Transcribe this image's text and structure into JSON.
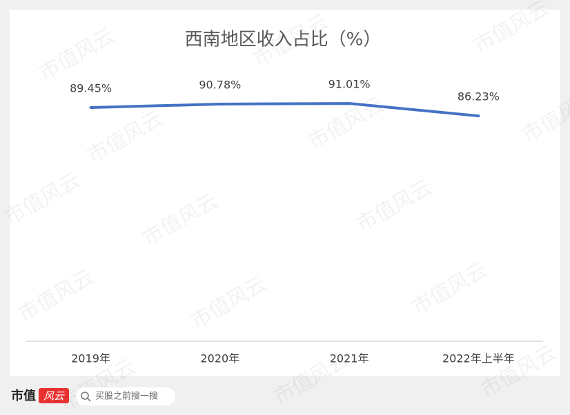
{
  "chart_data": {
    "type": "line",
    "title": "西南地区收入占比（%）",
    "categories": [
      "2019年",
      "2020年",
      "2021年",
      "2022年上半年"
    ],
    "values": [
      89.45,
      90.78,
      91.01,
      86.23
    ],
    "value_labels": [
      "89.45%",
      "90.78%",
      "91.01%",
      "86.23%"
    ],
    "color": "#4472c4",
    "ylim": [
      0,
      100
    ]
  },
  "watermark": "市值风云",
  "footer": {
    "logo_text": "市值",
    "logo_mark": "风云",
    "search_placeholder": "买股之前搜一搜"
  }
}
